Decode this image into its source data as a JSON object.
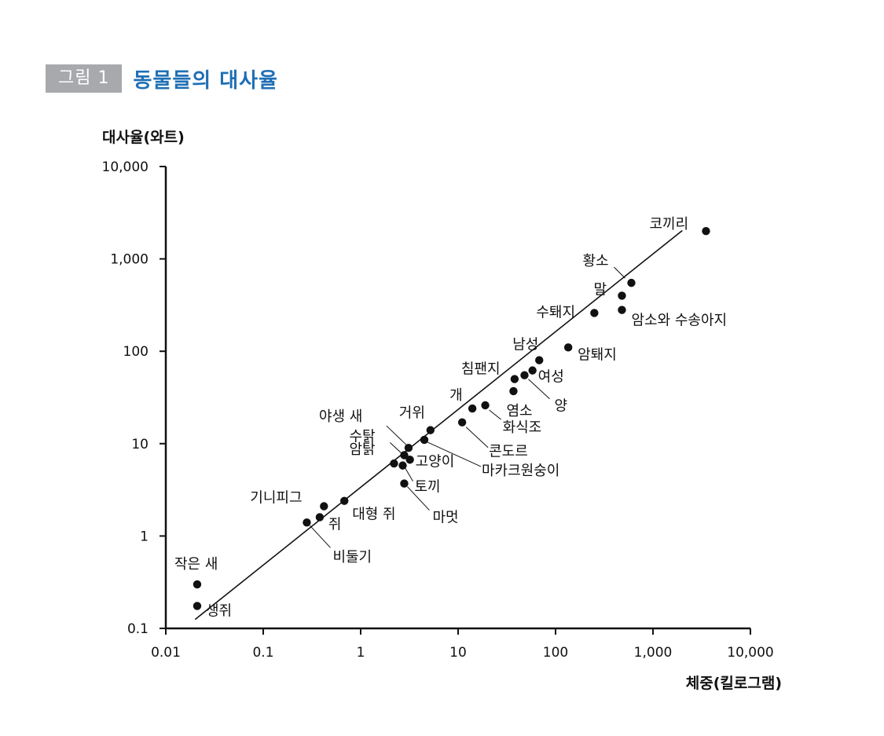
{
  "figure": {
    "tag": "그림 1",
    "title": "동물들의 대사율",
    "accent_color": "#1f6fb5",
    "tag_color": "#a7a9ac"
  },
  "chart_data": {
    "type": "scatter",
    "title": "동물들의 대사율",
    "xlabel": "체중(킬로그램)",
    "ylabel": "대사율(와트)",
    "xscale": "log",
    "yscale": "log",
    "xlim": [
      0.01,
      10000
    ],
    "ylim": [
      0.1,
      10000
    ],
    "xticks": [
      {
        "value": 0.01,
        "label": "0.01"
      },
      {
        "value": 0.1,
        "label": "0.1"
      },
      {
        "value": 1,
        "label": "1"
      },
      {
        "value": 10,
        "label": "10"
      },
      {
        "value": 100,
        "label": "100"
      },
      {
        "value": 1000,
        "label": "1,000"
      },
      {
        "value": 10000,
        "label": "10,000"
      }
    ],
    "yticks": [
      {
        "value": 0.1,
        "label": "0.1"
      },
      {
        "value": 1,
        "label": "1"
      },
      {
        "value": 10,
        "label": "10"
      },
      {
        "value": 100,
        "label": "100"
      },
      {
        "value": 1000,
        "label": "1,000"
      },
      {
        "value": 10000,
        "label": "10,000"
      }
    ],
    "grid": false,
    "trendline": {
      "x": [
        0.02,
        2000
      ],
      "y": [
        0.125,
        2030
      ]
    },
    "points": [
      {
        "label": "코끼리",
        "x": 3500,
        "y": 2000
      },
      {
        "label": "황소",
        "x": 600,
        "y": 550
      },
      {
        "label": "말",
        "x": 480,
        "y": 400
      },
      {
        "label": "수퇘지",
        "x": 250,
        "y": 260
      },
      {
        "label": "암소와 수송아지",
        "x": 480,
        "y": 280
      },
      {
        "label": "암퇘지",
        "x": 135,
        "y": 110
      },
      {
        "label": "남성",
        "x": 68,
        "y": 80
      },
      {
        "label": "여성",
        "x": 58,
        "y": 62
      },
      {
        "label": "양",
        "x": 48,
        "y": 55
      },
      {
        "label": "침팬지",
        "x": 38,
        "y": 50
      },
      {
        "label": "염소",
        "x": 37,
        "y": 37
      },
      {
        "label": "개",
        "x": 14,
        "y": 24
      },
      {
        "label": "화식조",
        "x": 19,
        "y": 26
      },
      {
        "label": "콘도르",
        "x": 11,
        "y": 17
      },
      {
        "label": "거위",
        "x": 5.2,
        "y": 14
      },
      {
        "label": "마카크원숭이",
        "x": 4.5,
        "y": 11
      },
      {
        "label": "야생 새",
        "x": 3.1,
        "y": 9
      },
      {
        "label": "수탉",
        "x": 2.8,
        "y": 7.5
      },
      {
        "label": "고양이",
        "x": 3.2,
        "y": 6.7
      },
      {
        "label": "암탉",
        "x": 2.2,
        "y": 6.1
      },
      {
        "label": "토끼",
        "x": 2.7,
        "y": 5.8
      },
      {
        "label": "마멋",
        "x": 2.8,
        "y": 3.7
      },
      {
        "label": "기니피그",
        "x": 0.42,
        "y": 2.1
      },
      {
        "label": "대형 쥐",
        "x": 0.68,
        "y": 2.4
      },
      {
        "label": "쥐",
        "x": 0.38,
        "y": 1.6
      },
      {
        "label": "비둘기",
        "x": 0.28,
        "y": 1.4
      },
      {
        "label": "작은 새",
        "x": 0.021,
        "y": 0.3
      },
      {
        "label": "생쥐",
        "x": 0.021,
        "y": 0.175
      }
    ]
  }
}
